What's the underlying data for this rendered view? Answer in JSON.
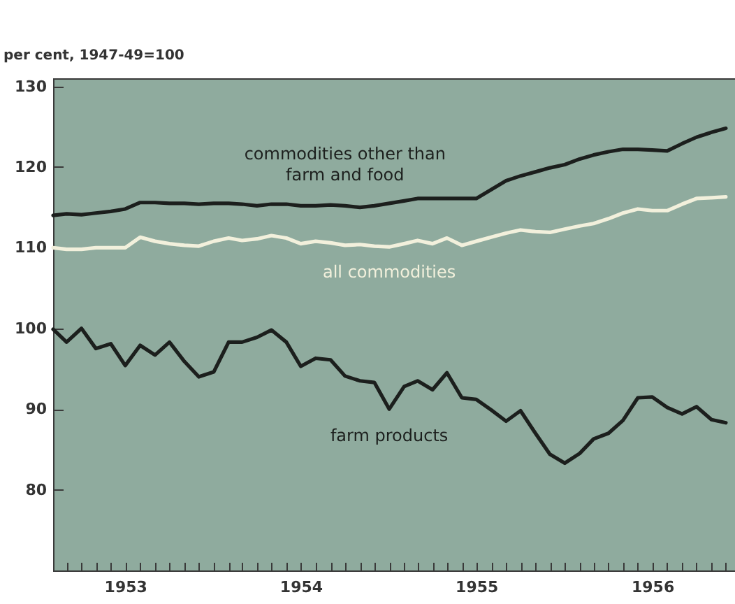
{
  "chart_data": {
    "type": "line",
    "ylabel": "per cent, 1947-49=100",
    "x": [
      "1953-02",
      "1953-03",
      "1953-04",
      "1953-05",
      "1953-06",
      "1953-07",
      "1953-08",
      "1953-09",
      "1953-10",
      "1953-11",
      "1953-12",
      "1954-01",
      "1954-02",
      "1954-03",
      "1954-04",
      "1954-05",
      "1954-06",
      "1954-07",
      "1954-08",
      "1954-09",
      "1954-10",
      "1954-11",
      "1954-12",
      "1955-01",
      "1955-02",
      "1955-03",
      "1955-04",
      "1955-05",
      "1955-06",
      "1955-07",
      "1955-08",
      "1955-09",
      "1955-10",
      "1955-11",
      "1955-12",
      "1956-01",
      "1956-02",
      "1956-03",
      "1956-04",
      "1956-05",
      "1956-06",
      "1956-07",
      "1956-08",
      "1956-09",
      "1956-10",
      "1956-11",
      "1956-12"
    ],
    "series": [
      {
        "name": "commodities other than farm and food",
        "color": "#1c1f1d",
        "values": [
          114.0,
          114.2,
          114.1,
          114.3,
          114.5,
          114.8,
          115.6,
          115.6,
          115.5,
          115.5,
          115.4,
          115.5,
          115.5,
          115.4,
          115.2,
          115.4,
          115.4,
          115.2,
          115.2,
          115.3,
          115.2,
          115.0,
          115.2,
          115.5,
          115.8,
          116.1,
          116.1,
          116.1,
          116.1,
          116.1,
          117.2,
          118.3,
          118.9,
          119.4,
          119.9,
          120.3,
          121.0,
          121.5,
          121.9,
          122.2,
          122.2,
          122.1,
          122.0,
          122.9,
          123.7,
          124.3,
          124.8
        ]
      },
      {
        "name": "all commodities",
        "color": "#f2f0dc",
        "values": [
          110.0,
          109.8,
          109.8,
          110.0,
          110.0,
          110.0,
          111.3,
          110.8,
          110.5,
          110.3,
          110.2,
          110.8,
          111.2,
          110.9,
          111.1,
          111.5,
          111.2,
          110.5,
          110.8,
          110.6,
          110.3,
          110.4,
          110.2,
          110.1,
          110.5,
          110.9,
          110.5,
          111.2,
          110.3,
          110.8,
          111.3,
          111.8,
          112.2,
          112.0,
          111.9,
          112.3,
          112.7,
          113.0,
          113.6,
          114.3,
          114.8,
          114.6,
          114.6,
          115.4,
          116.1,
          116.2,
          116.3
        ]
      },
      {
        "name": "farm products",
        "color": "#1c1f1d",
        "values": [
          99.9,
          98.3,
          100.0,
          97.5,
          98.1,
          95.4,
          97.9,
          96.7,
          98.3,
          95.9,
          94.0,
          94.6,
          98.3,
          98.3,
          98.9,
          99.8,
          98.3,
          95.3,
          96.3,
          96.1,
          94.1,
          93.5,
          93.3,
          90.0,
          92.8,
          93.5,
          92.4,
          94.5,
          91.4,
          91.2,
          89.9,
          88.5,
          89.8,
          87.0,
          84.4,
          83.3,
          84.5,
          86.3,
          87.0,
          88.6,
          91.4,
          91.5,
          90.2,
          89.4,
          90.3,
          88.7,
          88.3
        ]
      }
    ],
    "xlim": [
      "1953-02",
      "1956-12-20"
    ],
    "xticks": [
      {
        "value": "1953-02",
        "label": null
      },
      {
        "value": "1953-03",
        "label": null
      },
      {
        "value": "1953-04",
        "label": null
      },
      {
        "value": "1953-05",
        "label": null
      },
      {
        "value": "1953-06",
        "label": null
      },
      {
        "value": "1953-07",
        "label": "1953"
      },
      {
        "value": "1953-08",
        "label": null
      },
      {
        "value": "1953-09",
        "label": null
      },
      {
        "value": "1953-10",
        "label": null
      },
      {
        "value": "1953-11",
        "label": null
      },
      {
        "value": "1953-12",
        "label": null
      },
      {
        "value": "1954-01",
        "label": null
      },
      {
        "value": "1954-02",
        "label": null
      },
      {
        "value": "1954-03",
        "label": null
      },
      {
        "value": "1954-04",
        "label": null
      },
      {
        "value": "1954-05",
        "label": null
      },
      {
        "value": "1954-06",
        "label": null
      },
      {
        "value": "1954-07",
        "label": "1954"
      },
      {
        "value": "1954-08",
        "label": null
      },
      {
        "value": "1954-09",
        "label": null
      },
      {
        "value": "1954-10",
        "label": null
      },
      {
        "value": "1954-11",
        "label": null
      },
      {
        "value": "1954-12",
        "label": null
      },
      {
        "value": "1955-01",
        "label": null
      },
      {
        "value": "1955-02",
        "label": null
      },
      {
        "value": "1955-03",
        "label": null
      },
      {
        "value": "1955-04",
        "label": null
      },
      {
        "value": "1955-05",
        "label": null
      },
      {
        "value": "1955-06",
        "label": null
      },
      {
        "value": "1955-07",
        "label": "1955"
      },
      {
        "value": "1955-08",
        "label": null
      },
      {
        "value": "1955-09",
        "label": null
      },
      {
        "value": "1955-10",
        "label": null
      },
      {
        "value": "1955-11",
        "label": null
      },
      {
        "value": "1955-12",
        "label": null
      },
      {
        "value": "1956-01",
        "label": null
      },
      {
        "value": "1956-02",
        "label": null
      },
      {
        "value": "1956-03",
        "label": null
      },
      {
        "value": "1956-04",
        "label": null
      },
      {
        "value": "1956-05",
        "label": null
      },
      {
        "value": "1956-06",
        "label": null
      },
      {
        "value": "1956-07",
        "label": "1956"
      },
      {
        "value": "1956-08",
        "label": null
      },
      {
        "value": "1956-09",
        "label": null
      },
      {
        "value": "1956-10",
        "label": null
      },
      {
        "value": "1956-11",
        "label": null
      },
      {
        "value": "1956-12",
        "label": null
      }
    ],
    "ylim": [
      70,
      131
    ],
    "yticks": [
      80,
      90,
      100,
      110,
      120,
      130
    ],
    "grid": false,
    "legend": false
  }
}
